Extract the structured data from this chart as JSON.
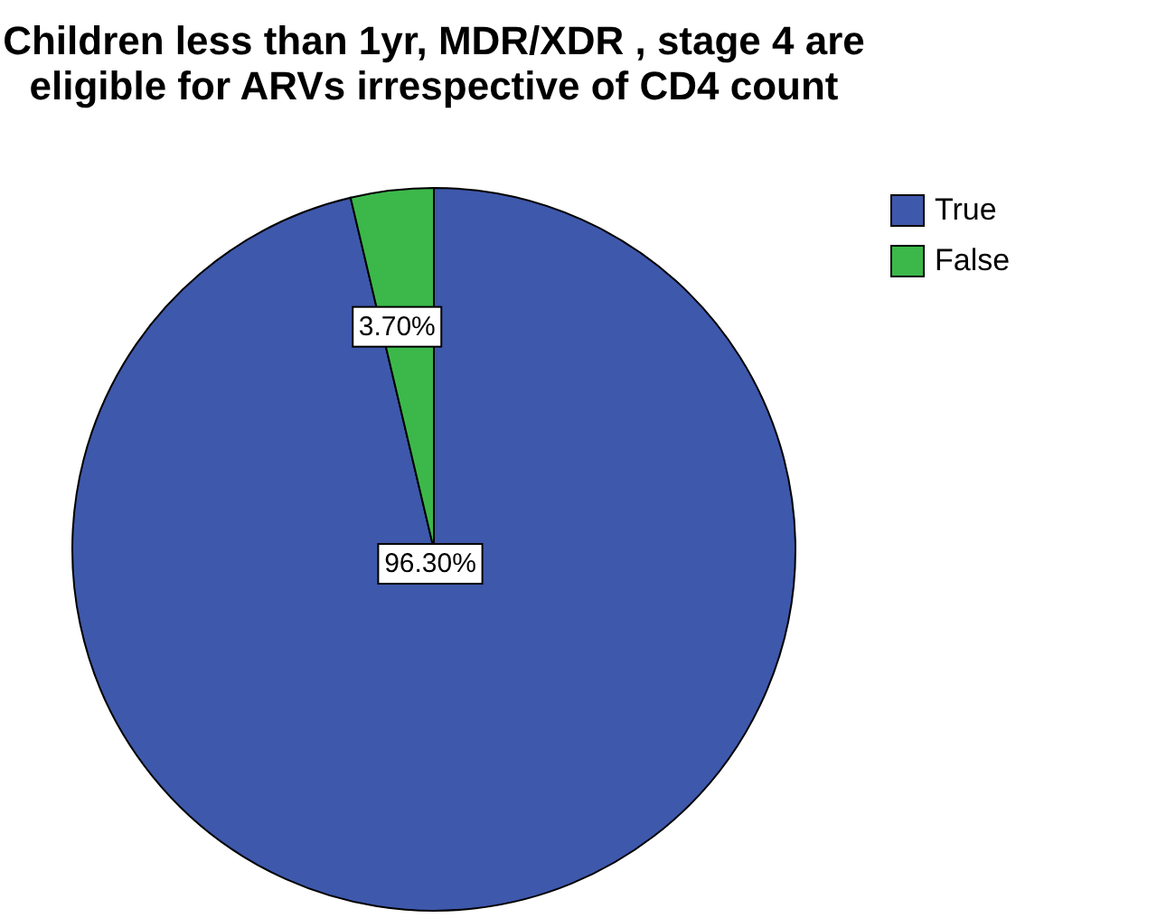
{
  "chart_data": {
    "type": "pie",
    "title": "Children less than 1yr, MDR/XDR , stage 4 are eligible for ARVs irrespective of CD4 count",
    "categories": [
      "True",
      "False"
    ],
    "values": [
      96.3,
      3.7
    ],
    "colors": [
      "#3e58ac",
      "#3cb84a"
    ],
    "value_labels": [
      "96.30%",
      "3.70%"
    ],
    "legend": "top right"
  }
}
